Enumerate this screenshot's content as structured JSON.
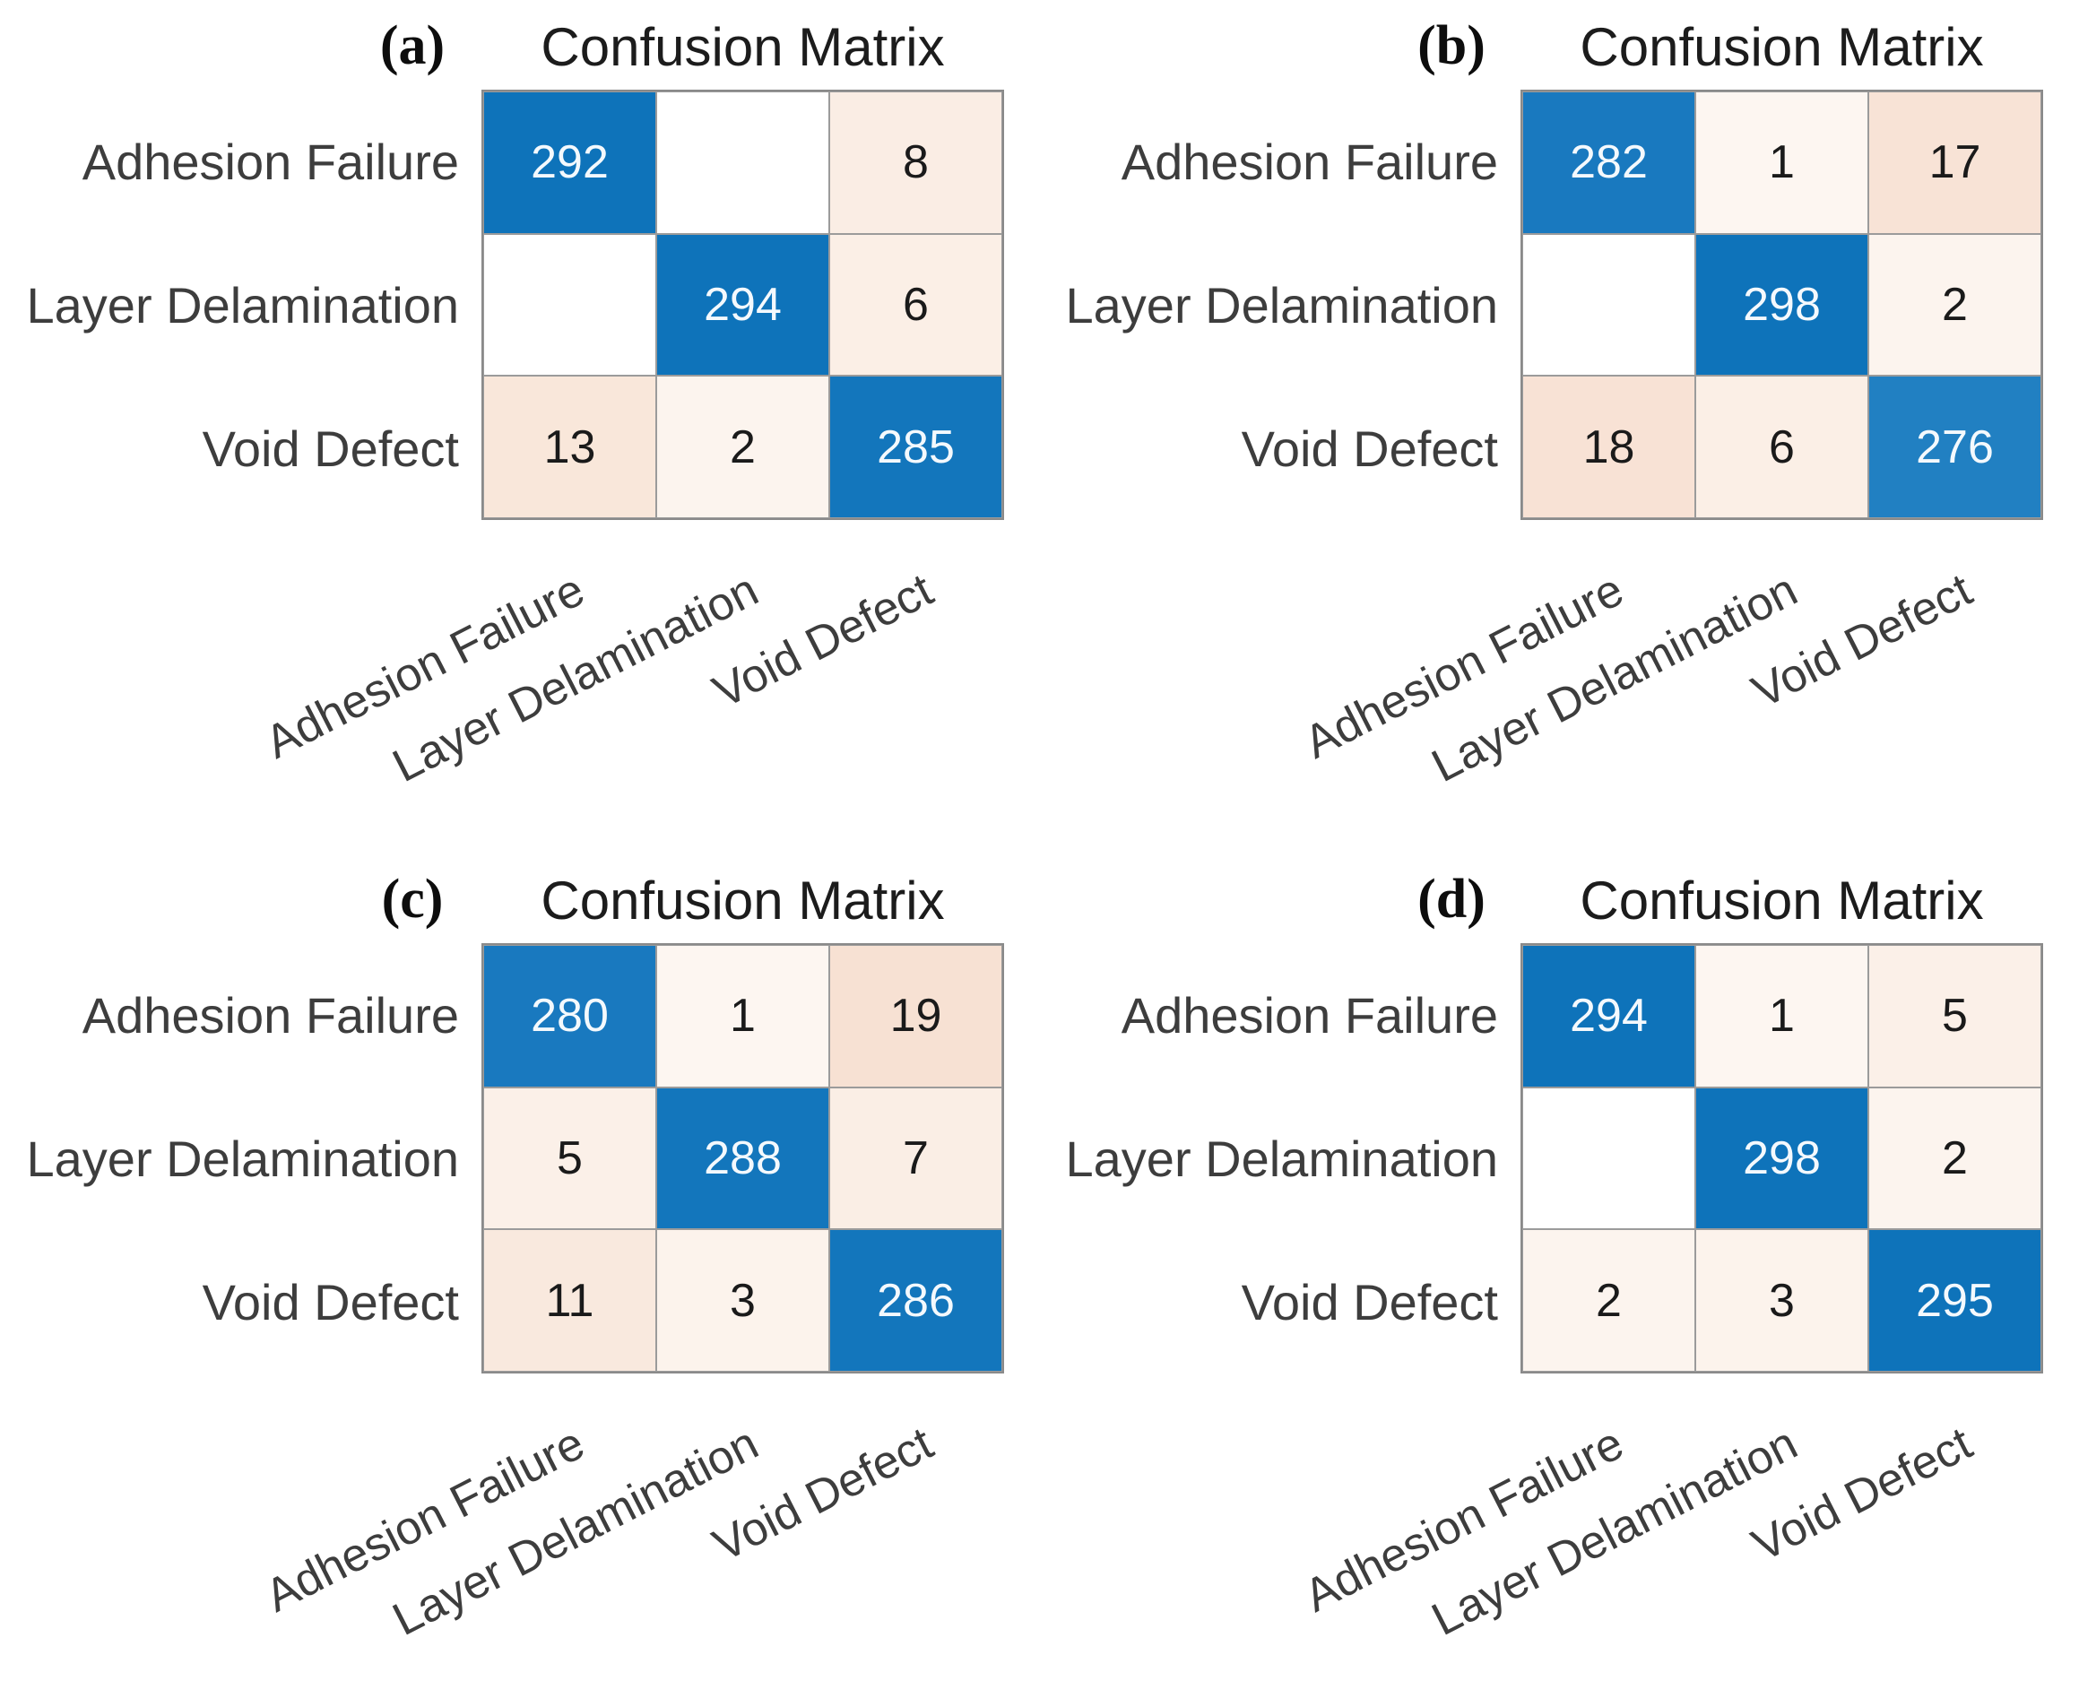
{
  "figure": {
    "shared_title": "Confusion Matrix",
    "class_names": [
      "Adhesion Failure",
      "Layer Delamination",
      "Void Defect"
    ]
  },
  "colors": {
    "diagonal_blue": "#0e73ba",
    "diagonal_blue_light": "#2180c2",
    "off_diagonal_tint_max": "#f7e1d3",
    "grid_line": "#9b9b9b",
    "outer_border": "#8a8a8a",
    "label_text": "#3d3d3d",
    "number_text": "#1a1a1a",
    "number_text_on_blue": "#f4f9fd"
  },
  "panels": [
    {
      "letter": "(a)",
      "title": "Confusion Matrix",
      "row_labels": [
        "Adhesion Failure",
        "Layer Delamination",
        "Void Defect"
      ],
      "col_labels": [
        "Adhesion Failure",
        "Layer Delamination",
        "Void Defect"
      ],
      "cells": [
        {
          "value": "292",
          "bg": "#0e73ba",
          "fg": "#f4f9fd"
        },
        {
          "value": "",
          "bg": "#ffffff",
          "fg": "#1a1a1a"
        },
        {
          "value": "8",
          "bg": "#faede4",
          "fg": "#1a1a1a"
        },
        {
          "value": "",
          "bg": "#ffffff",
          "fg": "#1a1a1a"
        },
        {
          "value": "294",
          "bg": "#0e73ba",
          "fg": "#f4f9fd"
        },
        {
          "value": "6",
          "bg": "#fbefe6",
          "fg": "#1a1a1a"
        },
        {
          "value": "13",
          "bg": "#f9e7da",
          "fg": "#1a1a1a"
        },
        {
          "value": "2",
          "bg": "#fcf4ee",
          "fg": "#1a1a1a"
        },
        {
          "value": "285",
          "bg": "#1376bc",
          "fg": "#f4f9fd"
        }
      ]
    },
    {
      "letter": "(b)",
      "title": "Confusion Matrix",
      "row_labels": [
        "Adhesion Failure",
        "Layer Delamination",
        "Void Defect"
      ],
      "col_labels": [
        "Adhesion Failure",
        "Layer Delamination",
        "Void Defect"
      ],
      "cells": [
        {
          "value": "282",
          "bg": "#1979bf",
          "fg": "#f4f9fd"
        },
        {
          "value": "1",
          "bg": "#fdf6f1",
          "fg": "#1a1a1a"
        },
        {
          "value": "17",
          "bg": "#f8e3d6",
          "fg": "#1a1a1a"
        },
        {
          "value": "",
          "bg": "#ffffff",
          "fg": "#1a1a1a"
        },
        {
          "value": "298",
          "bg": "#0e73ba",
          "fg": "#f4f9fd"
        },
        {
          "value": "2",
          "bg": "#fcf4ee",
          "fg": "#1a1a1a"
        },
        {
          "value": "18",
          "bg": "#f8e2d5",
          "fg": "#1a1a1a"
        },
        {
          "value": "6",
          "bg": "#fbefe6",
          "fg": "#1a1a1a"
        },
        {
          "value": "276",
          "bg": "#2180c2",
          "fg": "#f4f9fd"
        }
      ]
    },
    {
      "letter": "(c)",
      "title": "Confusion Matrix",
      "row_labels": [
        "Adhesion Failure",
        "Layer Delamination",
        "Void Defect"
      ],
      "col_labels": [
        "Adhesion Failure",
        "Layer Delamination",
        "Void Defect"
      ],
      "cells": [
        {
          "value": "280",
          "bg": "#1979bf",
          "fg": "#f4f9fd"
        },
        {
          "value": "1",
          "bg": "#fdf6f1",
          "fg": "#1a1a1a"
        },
        {
          "value": "19",
          "bg": "#f7e1d3",
          "fg": "#1a1a1a"
        },
        {
          "value": "5",
          "bg": "#fbf0e8",
          "fg": "#1a1a1a"
        },
        {
          "value": "288",
          "bg": "#1376bc",
          "fg": "#f4f9fd"
        },
        {
          "value": "7",
          "bg": "#faeee5",
          "fg": "#1a1a1a"
        },
        {
          "value": "11",
          "bg": "#f9e9de",
          "fg": "#1a1a1a"
        },
        {
          "value": "3",
          "bg": "#fcf3ec",
          "fg": "#1a1a1a"
        },
        {
          "value": "286",
          "bg": "#1376bc",
          "fg": "#f4f9fd"
        }
      ]
    },
    {
      "letter": "(d)",
      "title": "Confusion Matrix",
      "row_labels": [
        "Adhesion Failure",
        "Layer Delamination",
        "Void Defect"
      ],
      "col_labels": [
        "Adhesion Failure",
        "Layer Delamination",
        "Void Defect"
      ],
      "cells": [
        {
          "value": "294",
          "bg": "#0e73ba",
          "fg": "#f4f9fd"
        },
        {
          "value": "1",
          "bg": "#fdf6f1",
          "fg": "#1a1a1a"
        },
        {
          "value": "5",
          "bg": "#fbf0e8",
          "fg": "#1a1a1a"
        },
        {
          "value": "",
          "bg": "#ffffff",
          "fg": "#1a1a1a"
        },
        {
          "value": "298",
          "bg": "#0e73ba",
          "fg": "#f4f9fd"
        },
        {
          "value": "2",
          "bg": "#fcf4ee",
          "fg": "#1a1a1a"
        },
        {
          "value": "2",
          "bg": "#fcf4ee",
          "fg": "#1a1a1a"
        },
        {
          "value": "3",
          "bg": "#fcf3ec",
          "fg": "#1a1a1a"
        },
        {
          "value": "295",
          "bg": "#0e73ba",
          "fg": "#f4f9fd"
        }
      ]
    }
  ],
  "chart_data": [
    {
      "type": "heatmap",
      "panel": "(a)",
      "title": "Confusion Matrix",
      "rows": [
        "Adhesion Failure",
        "Layer Delamination",
        "Void Defect"
      ],
      "columns": [
        "Adhesion Failure",
        "Layer Delamination",
        "Void Defect"
      ],
      "values": [
        [
          292,
          null,
          8
        ],
        [
          null,
          294,
          6
        ],
        [
          13,
          2,
          285
        ]
      ],
      "legend_position": "none",
      "grid": true,
      "colormap": "diagonal cells blue (#0e73ba), off-diagonal white-to-peach scaled by value"
    },
    {
      "type": "heatmap",
      "panel": "(b)",
      "title": "Confusion Matrix",
      "rows": [
        "Adhesion Failure",
        "Layer Delamination",
        "Void Defect"
      ],
      "columns": [
        "Adhesion Failure",
        "Layer Delamination",
        "Void Defect"
      ],
      "values": [
        [
          282,
          1,
          17
        ],
        [
          null,
          298,
          2
        ],
        [
          18,
          6,
          276
        ]
      ],
      "legend_position": "none",
      "grid": true,
      "colormap": "diagonal cells blue (#0e73ba), off-diagonal white-to-peach scaled by value"
    },
    {
      "type": "heatmap",
      "panel": "(c)",
      "title": "Confusion Matrix",
      "rows": [
        "Adhesion Failure",
        "Layer Delamination",
        "Void Defect"
      ],
      "columns": [
        "Adhesion Failure",
        "Layer Delamination",
        "Void Defect"
      ],
      "values": [
        [
          280,
          1,
          19
        ],
        [
          5,
          288,
          7
        ],
        [
          11,
          3,
          286
        ]
      ],
      "legend_position": "none",
      "grid": true,
      "colormap": "diagonal cells blue (#0e73ba), off-diagonal white-to-peach scaled by value"
    },
    {
      "type": "heatmap",
      "panel": "(d)",
      "title": "Confusion Matrix",
      "rows": [
        "Adhesion Failure",
        "Layer Delamination",
        "Void Defect"
      ],
      "columns": [
        "Adhesion Failure",
        "Layer Delamination",
        "Void Defect"
      ],
      "values": [
        [
          294,
          1,
          5
        ],
        [
          null,
          298,
          2
        ],
        [
          2,
          3,
          295
        ]
      ],
      "legend_position": "none",
      "grid": true,
      "colormap": "diagonal cells blue (#0e73ba), off-diagonal white-to-peach scaled by value"
    }
  ]
}
